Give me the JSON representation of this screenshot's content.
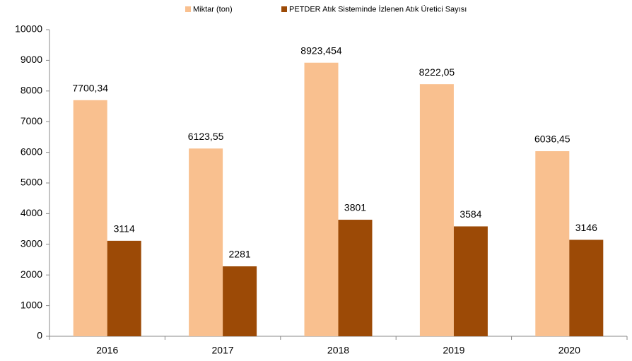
{
  "chart_data": {
    "type": "bar",
    "categories": [
      "2016",
      "2017",
      "2018",
      "2019",
      "2020"
    ],
    "series": [
      {
        "name": "Miktar (ton)",
        "color": "#f9c08f",
        "values": [
          7700.34,
          6123.55,
          8923.454,
          8222.05,
          6036.45
        ],
        "value_labels": [
          "7700,34",
          "6123,55",
          "8923,454",
          "8222,05",
          "6036,45"
        ]
      },
      {
        "name": "PETDER Atık Sisteminde İzlenen Atık Üretici Sayısı",
        "color": "#9c4a06",
        "values": [
          3114,
          2281,
          3801,
          3584,
          3146
        ]
      }
    ],
    "ylim": [
      0,
      10000
    ],
    "yticks": [
      0,
      1000,
      2000,
      3000,
      4000,
      5000,
      6000,
      7000,
      8000,
      9000,
      10000
    ],
    "legend": "top",
    "grid": false
  }
}
